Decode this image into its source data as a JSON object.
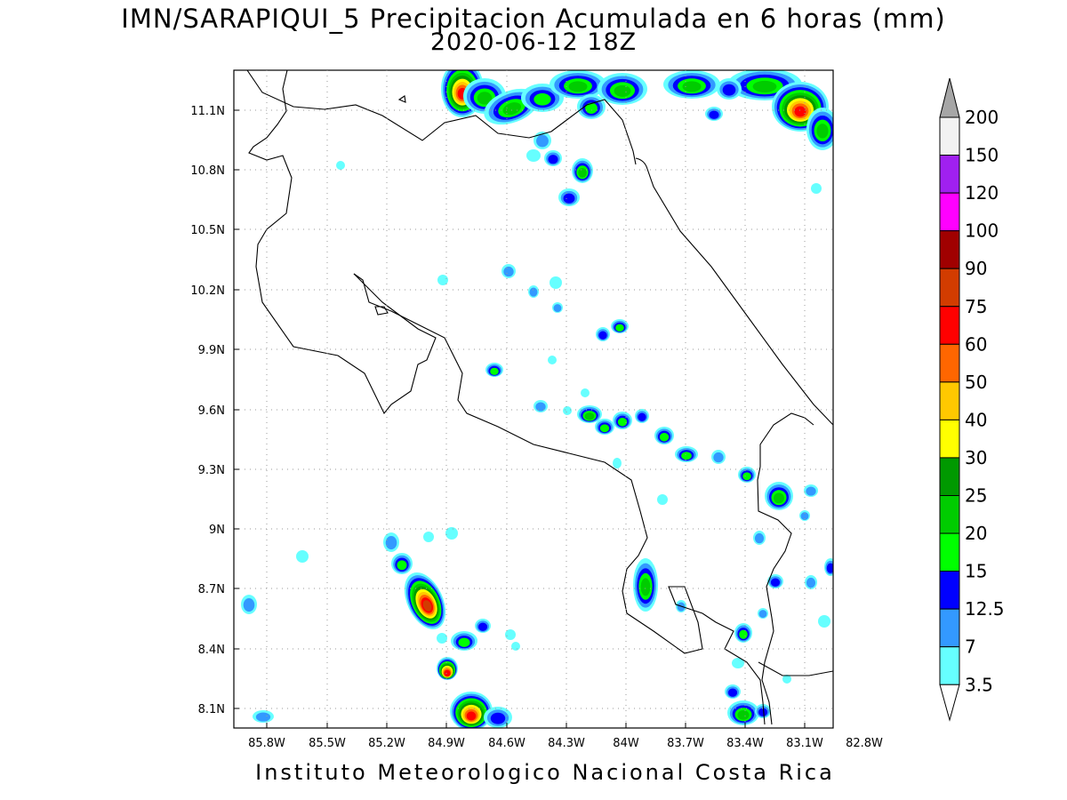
{
  "title": {
    "line1": "IMN/SARAPIQUI_5 Precipitacion Acumulada en 6 horas (mm)",
    "line2": "2020-06-12 18Z"
  },
  "footer": "Instituto Meteorologico Nacional Costa Rica",
  "axes": {
    "lon_ticks": [
      "85.8W",
      "85.5W",
      "85.2W",
      "84.9W",
      "84.6W",
      "84.3W",
      "84W",
      "83.7W",
      "83.4W",
      "83.1W",
      "82.8W"
    ],
    "lat_ticks": [
      "11.1N",
      "10.8N",
      "10.5N",
      "10.2N",
      "9.9N",
      "9.6N",
      "9.3N",
      "9N",
      "8.7N",
      "8.4N",
      "8.1N"
    ],
    "grid": "dotted"
  },
  "colorbar": {
    "labels": [
      "200",
      "150",
      "120",
      "100",
      "90",
      "75",
      "60",
      "50",
      "40",
      "30",
      "25",
      "20",
      "15",
      "12.5",
      "7",
      "3.5"
    ],
    "colors": [
      "#f2f2f2",
      "#a020f0",
      "#ff00ff",
      "#a00000",
      "#d23c00",
      "#ff0000",
      "#ff6600",
      "#ffc800",
      "#ffff00",
      "#009900",
      "#00cc00",
      "#00ff00",
      "#0000ff",
      "#3399ff",
      "#66ffff"
    ],
    "top_triangle_color": "#a6a6a6",
    "bottom_triangle_color": "#ffffff"
  }
}
